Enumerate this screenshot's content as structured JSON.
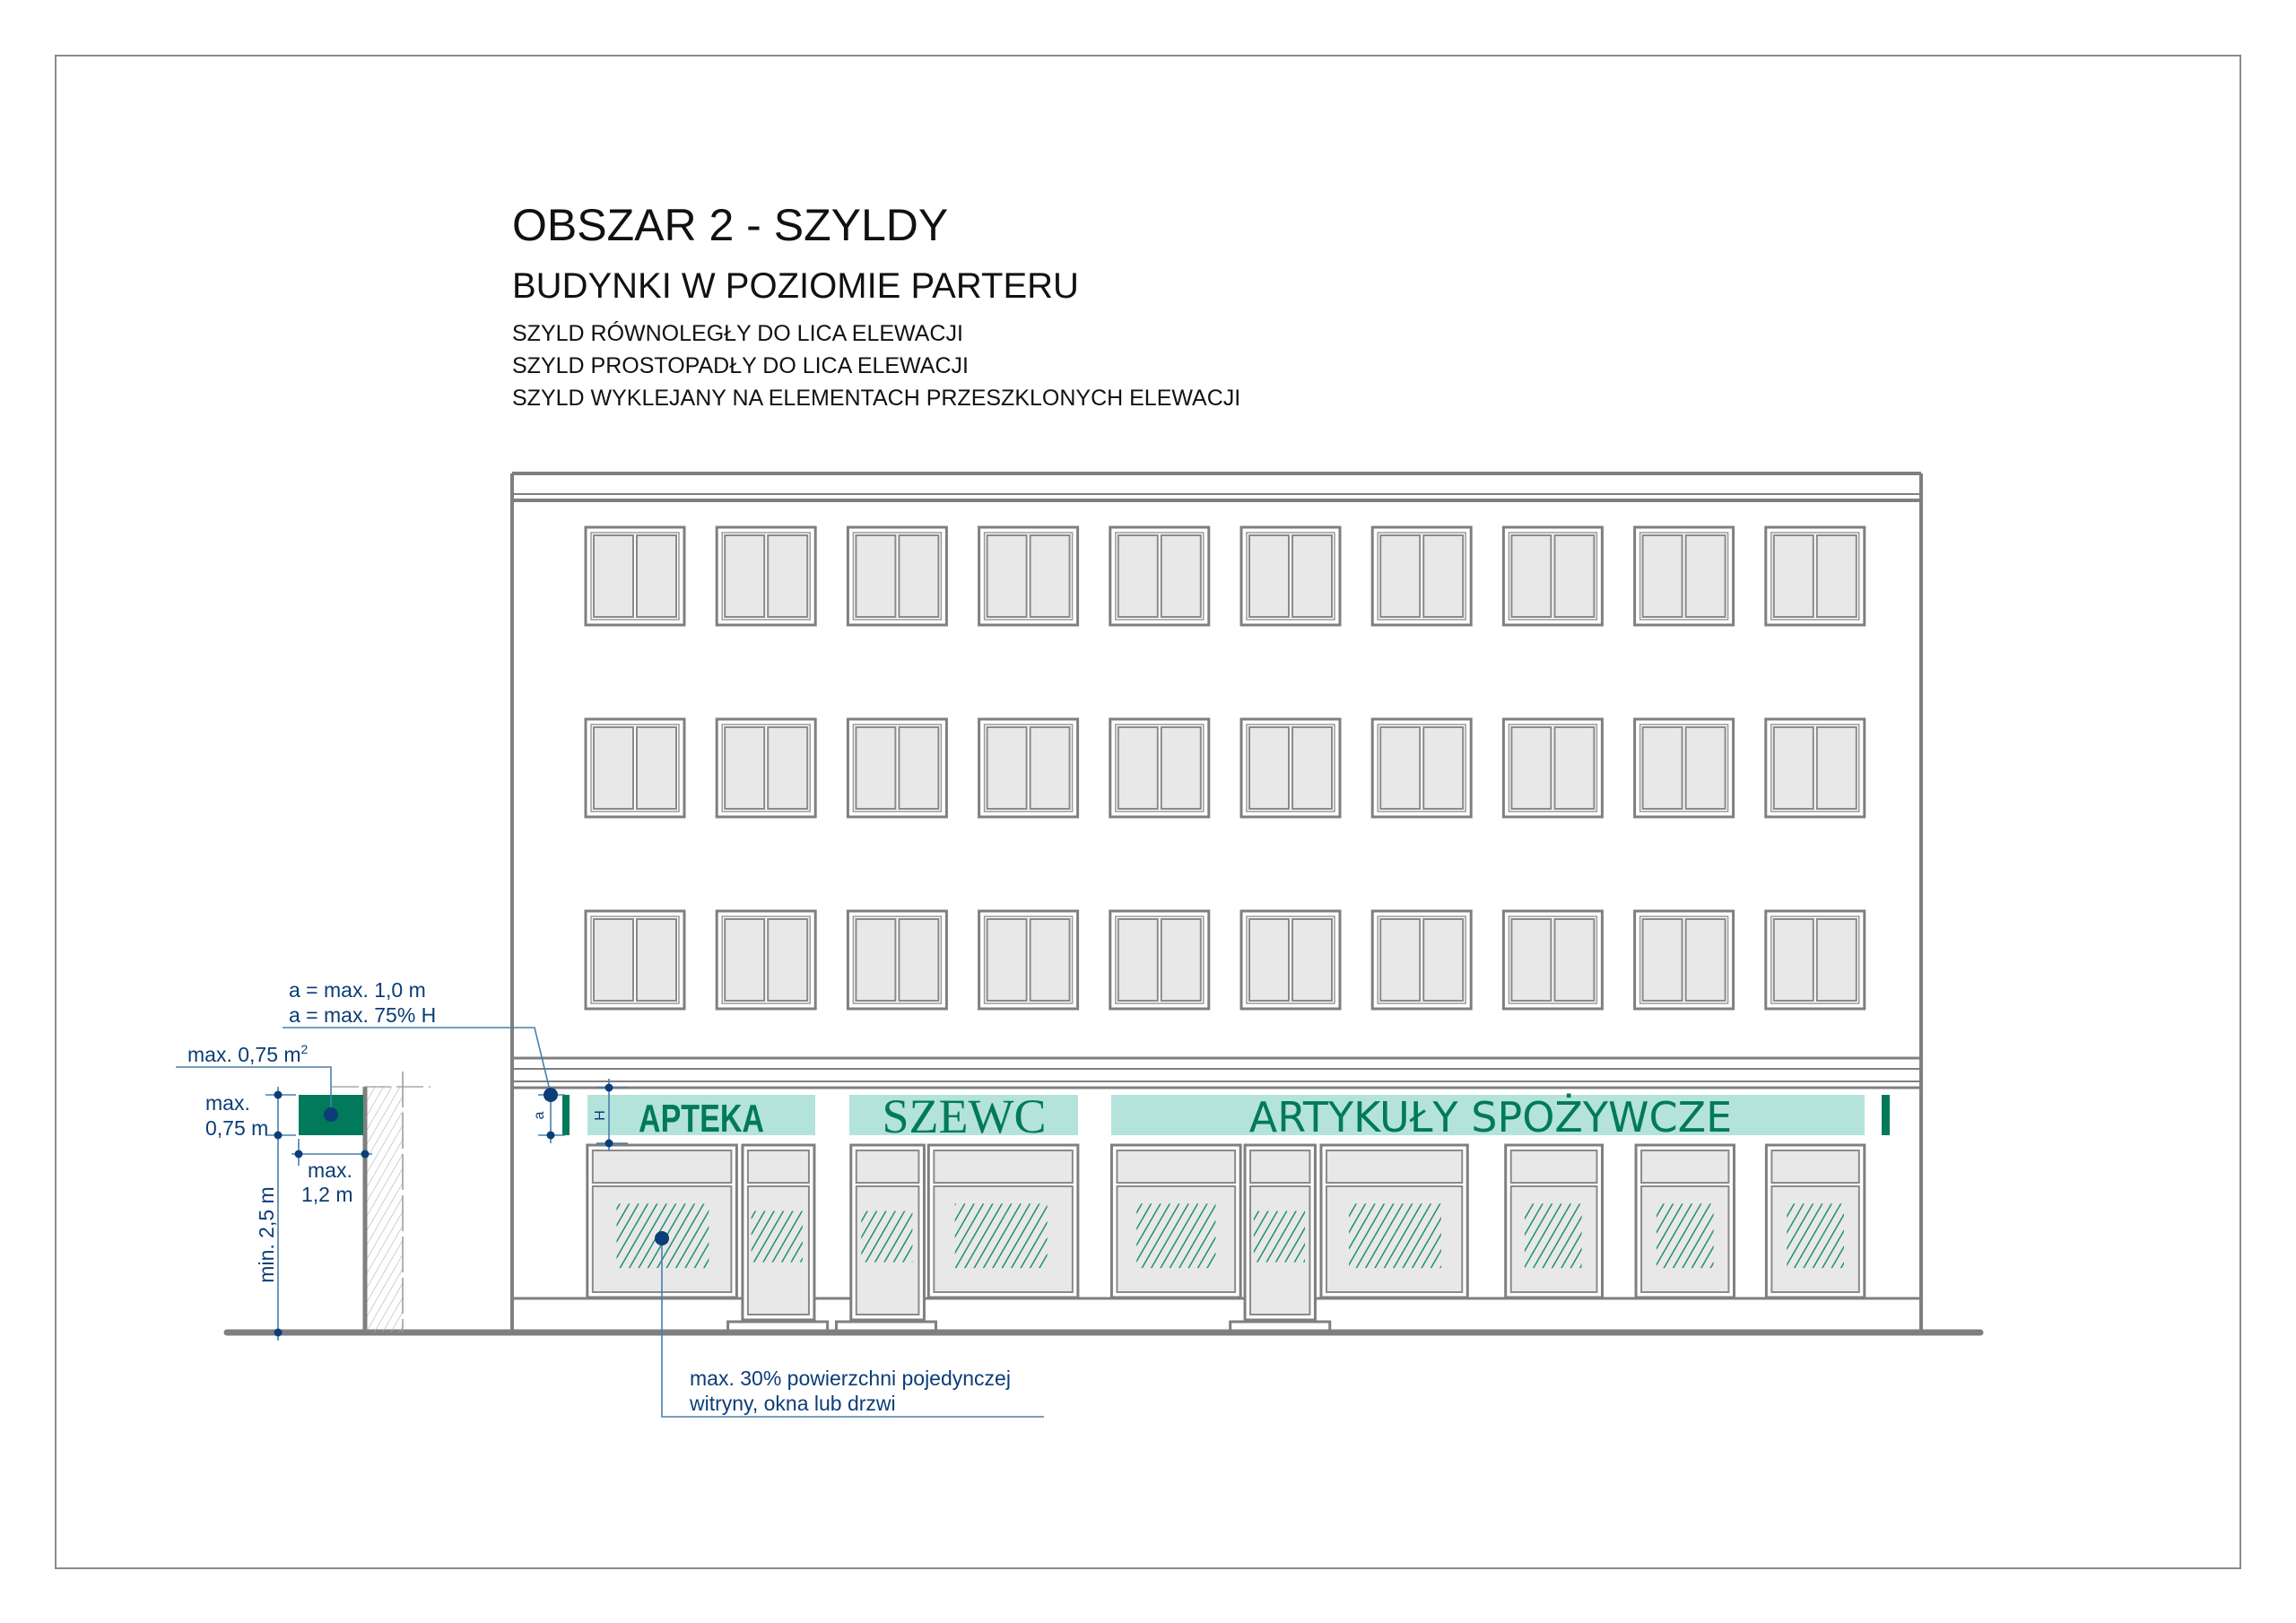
{
  "header": {
    "title": "OBSZAR 2 - SZYLDY",
    "subtitle": "BUDYNKI W POZIOMIE PARTERU",
    "lines": [
      "SZYLD RÓWNOLEGŁY DO LICA ELEWACJI",
      "SZYLD PROSTOPADŁY DO LICA ELEWACJI",
      "SZYLD WYKLEJANY NA ELEMENTACH PRZESZKLONYCH ELEWACJI"
    ]
  },
  "signs": {
    "pharmacy": "APTEKA",
    "shoemaker": "SZEWC",
    "grocery": "ARTYKUŁY SPOŻYWCZE"
  },
  "annotations": {
    "a_max_1": "a = max. 1,0 m",
    "a_max_2": "a = max. 75% H",
    "area_max": "max. 0,75 m",
    "area_sup": "2",
    "height_max_1": "max.",
    "height_max_2": "0,75 m",
    "depth_max_1": "max.",
    "depth_max_2": "1,2 m",
    "clearance_min": "min. 2,5 m",
    "dim_a": "a",
    "dim_h": "H",
    "glass_note_1": "max. 30% powierzchni pojedynczej",
    "glass_note_2": "witryny, okna lub drzwi"
  },
  "colors": {
    "sign_green": "#007a5a",
    "sign_background": "#b3e3da",
    "annotation_blue": "#0b3d78",
    "glass": "#e8e8e8"
  }
}
